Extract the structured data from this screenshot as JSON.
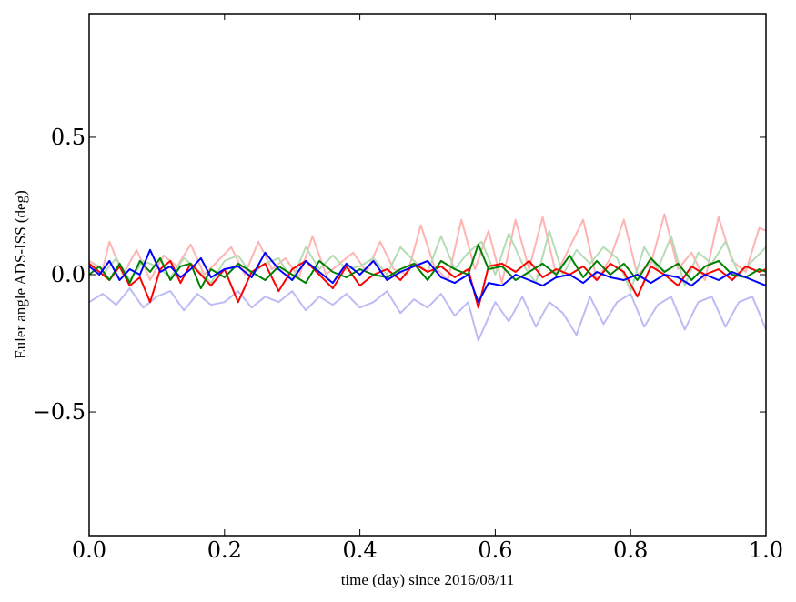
{
  "chart_data": {
    "type": "line",
    "xlabel": "time (day) since 2016/08/11",
    "ylabel": "Euler angle ADS-ISS (deg)",
    "xlim": [
      0.0,
      1.0
    ],
    "ylim": [
      -0.95,
      0.95
    ],
    "x_ticks": [
      {
        "value": 0.0,
        "label": "0.0"
      },
      {
        "value": 0.2,
        "label": "0.2"
      },
      {
        "value": 0.4,
        "label": "0.4"
      },
      {
        "value": 0.6,
        "label": "0.6"
      },
      {
        "value": 0.8,
        "label": "0.8"
      },
      {
        "value": 1.0,
        "label": "1.0"
      }
    ],
    "y_ticks": [
      {
        "value": 0.5,
        "label": "0.5"
      },
      {
        "value": 0.0,
        "label": "0.0"
      },
      {
        "value": -0.5,
        "label": "−0.5"
      }
    ],
    "grid": false,
    "series": [
      {
        "color": "#ffb3b3",
        "width": 2,
        "x": [
          0.0,
          0.02,
          0.03,
          0.05,
          0.07,
          0.09,
          0.11,
          0.13,
          0.15,
          0.17,
          0.19,
          0.21,
          0.23,
          0.25,
          0.27,
          0.29,
          0.31,
          0.33,
          0.35,
          0.37,
          0.39,
          0.41,
          0.43,
          0.45,
          0.47,
          0.49,
          0.51,
          0.53,
          0.55,
          0.57,
          0.59,
          0.61,
          0.63,
          0.65,
          0.67,
          0.69,
          0.71,
          0.73,
          0.75,
          0.77,
          0.79,
          0.81,
          0.83,
          0.85,
          0.87,
          0.89,
          0.91,
          0.93,
          0.95,
          0.97,
          0.99,
          1.0
        ],
        "y": [
          0.05,
          0.02,
          0.12,
          0.0,
          0.09,
          -0.02,
          0.07,
          0.03,
          0.11,
          0.0,
          0.05,
          0.1,
          0.0,
          0.12,
          0.02,
          0.06,
          -0.01,
          0.14,
          0.0,
          0.04,
          0.08,
          0.01,
          0.12,
          0.02,
          0.0,
          0.18,
          0.03,
          -0.02,
          0.2,
          0.02,
          0.16,
          -0.03,
          0.2,
          0.02,
          0.21,
          0.0,
          0.1,
          0.2,
          -0.02,
          0.06,
          0.2,
          0.0,
          0.04,
          0.22,
          0.02,
          0.08,
          -0.02,
          0.21,
          0.05,
          0.01,
          0.17,
          0.16
        ]
      },
      {
        "color": "#b5dcb5",
        "width": 2,
        "x": [
          0.0,
          0.02,
          0.04,
          0.06,
          0.08,
          0.1,
          0.12,
          0.14,
          0.16,
          0.18,
          0.2,
          0.22,
          0.24,
          0.26,
          0.28,
          0.3,
          0.32,
          0.34,
          0.36,
          0.38,
          0.4,
          0.42,
          0.44,
          0.46,
          0.48,
          0.5,
          0.52,
          0.54,
          0.56,
          0.58,
          0.6,
          0.62,
          0.64,
          0.66,
          0.68,
          0.7,
          0.72,
          0.74,
          0.76,
          0.78,
          0.8,
          0.82,
          0.84,
          0.86,
          0.88,
          0.9,
          0.92,
          0.94,
          0.96,
          0.98,
          1.0
        ],
        "y": [
          0.04,
          0.0,
          0.06,
          -0.02,
          0.05,
          0.03,
          -0.01,
          0.06,
          0.02,
          -0.03,
          0.05,
          0.07,
          0.0,
          0.04,
          0.06,
          -0.02,
          0.1,
          0.02,
          0.07,
          0.02,
          0.03,
          0.06,
          0.0,
          0.1,
          0.05,
          0.01,
          0.14,
          0.02,
          0.08,
          0.12,
          0.0,
          0.15,
          0.04,
          -0.03,
          0.16,
          0.0,
          0.09,
          0.04,
          0.1,
          0.06,
          -0.06,
          0.1,
          0.02,
          0.14,
          -0.04,
          0.08,
          0.04,
          0.12,
          0.0,
          0.05,
          0.1
        ]
      },
      {
        "color": "#bcbcf5",
        "width": 2,
        "x": [
          0.0,
          0.02,
          0.04,
          0.06,
          0.08,
          0.1,
          0.12,
          0.14,
          0.16,
          0.18,
          0.2,
          0.22,
          0.24,
          0.26,
          0.28,
          0.3,
          0.32,
          0.34,
          0.36,
          0.38,
          0.4,
          0.42,
          0.44,
          0.46,
          0.48,
          0.5,
          0.52,
          0.54,
          0.56,
          0.575,
          0.6,
          0.62,
          0.64,
          0.66,
          0.68,
          0.7,
          0.72,
          0.74,
          0.76,
          0.78,
          0.8,
          0.82,
          0.84,
          0.86,
          0.88,
          0.9,
          0.92,
          0.94,
          0.96,
          0.98,
          1.0
        ],
        "y": [
          -0.1,
          -0.07,
          -0.11,
          -0.05,
          -0.12,
          -0.08,
          -0.06,
          -0.13,
          -0.07,
          -0.11,
          -0.1,
          -0.06,
          -0.12,
          -0.08,
          -0.1,
          -0.06,
          -0.13,
          -0.08,
          -0.11,
          -0.07,
          -0.12,
          -0.1,
          -0.06,
          -0.14,
          -0.09,
          -0.12,
          -0.07,
          -0.15,
          -0.1,
          -0.24,
          -0.1,
          -0.17,
          -0.08,
          -0.19,
          -0.1,
          -0.14,
          -0.22,
          -0.08,
          -0.18,
          -0.1,
          -0.07,
          -0.19,
          -0.11,
          -0.08,
          -0.2,
          -0.1,
          -0.08,
          -0.19,
          -0.1,
          -0.08,
          -0.2
        ]
      },
      {
        "color": "#ff0000",
        "width": 2,
        "x": [
          0.0,
          0.015,
          0.03,
          0.045,
          0.06,
          0.075,
          0.09,
          0.105,
          0.12,
          0.135,
          0.15,
          0.165,
          0.18,
          0.2,
          0.22,
          0.24,
          0.26,
          0.28,
          0.3,
          0.32,
          0.34,
          0.36,
          0.38,
          0.4,
          0.42,
          0.44,
          0.46,
          0.48,
          0.5,
          0.52,
          0.54,
          0.56,
          0.575,
          0.59,
          0.61,
          0.63,
          0.65,
          0.67,
          0.69,
          0.71,
          0.73,
          0.75,
          0.77,
          0.79,
          0.81,
          0.83,
          0.85,
          0.87,
          0.89,
          0.91,
          0.93,
          0.95,
          0.97,
          0.99,
          1.0
        ],
        "y": [
          0.04,
          0.01,
          -0.02,
          0.03,
          -0.04,
          -0.01,
          -0.1,
          0.02,
          0.05,
          -0.03,
          0.04,
          0.0,
          -0.04,
          0.02,
          -0.1,
          0.01,
          0.04,
          -0.06,
          0.02,
          0.05,
          0.0,
          -0.05,
          0.03,
          -0.04,
          0.0,
          0.02,
          -0.02,
          0.04,
          0.01,
          0.03,
          -0.01,
          0.02,
          -0.12,
          0.03,
          0.04,
          0.01,
          0.05,
          -0.01,
          0.02,
          0.0,
          0.03,
          -0.02,
          0.04,
          0.01,
          -0.08,
          0.03,
          0.0,
          -0.04,
          0.03,
          0.0,
          0.02,
          -0.02,
          0.03,
          0.01,
          0.02
        ]
      },
      {
        "color": "#008000",
        "width": 2,
        "x": [
          0.0,
          0.015,
          0.03,
          0.045,
          0.06,
          0.075,
          0.09,
          0.105,
          0.12,
          0.135,
          0.15,
          0.165,
          0.18,
          0.2,
          0.22,
          0.24,
          0.26,
          0.28,
          0.3,
          0.32,
          0.34,
          0.36,
          0.38,
          0.4,
          0.42,
          0.44,
          0.46,
          0.48,
          0.5,
          0.52,
          0.54,
          0.56,
          0.575,
          0.59,
          0.61,
          0.63,
          0.65,
          0.67,
          0.69,
          0.71,
          0.73,
          0.75,
          0.77,
          0.79,
          0.81,
          0.83,
          0.85,
          0.87,
          0.89,
          0.91,
          0.93,
          0.95,
          0.97,
          0.99,
          1.0
        ],
        "y": [
          0.0,
          0.03,
          -0.02,
          0.04,
          -0.03,
          0.05,
          0.01,
          0.06,
          -0.02,
          0.03,
          0.04,
          -0.05,
          0.02,
          -0.01,
          0.04,
          0.01,
          -0.02,
          0.03,
          0.0,
          -0.03,
          0.05,
          0.01,
          -0.01,
          0.02,
          0.0,
          -0.01,
          0.02,
          0.04,
          -0.02,
          0.05,
          0.02,
          0.0,
          0.11,
          0.02,
          0.03,
          -0.02,
          0.01,
          0.04,
          0.0,
          0.07,
          -0.01,
          0.05,
          0.0,
          0.04,
          -0.02,
          0.06,
          0.01,
          0.04,
          -0.02,
          0.03,
          0.05,
          0.0,
          -0.01,
          0.02,
          0.01
        ]
      },
      {
        "color": "#0000ff",
        "width": 2,
        "x": [
          0.0,
          0.015,
          0.03,
          0.045,
          0.06,
          0.075,
          0.09,
          0.105,
          0.12,
          0.135,
          0.15,
          0.165,
          0.18,
          0.2,
          0.22,
          0.24,
          0.26,
          0.28,
          0.3,
          0.32,
          0.34,
          0.36,
          0.38,
          0.4,
          0.42,
          0.44,
          0.46,
          0.48,
          0.5,
          0.52,
          0.54,
          0.56,
          0.575,
          0.59,
          0.61,
          0.63,
          0.65,
          0.67,
          0.69,
          0.71,
          0.73,
          0.75,
          0.77,
          0.79,
          0.81,
          0.83,
          0.85,
          0.87,
          0.89,
          0.91,
          0.93,
          0.95,
          0.97,
          0.99,
          1.0
        ],
        "y": [
          0.03,
          0.0,
          0.05,
          -0.02,
          0.02,
          0.0,
          0.09,
          0.01,
          0.03,
          -0.01,
          0.02,
          0.06,
          -0.01,
          0.02,
          0.03,
          -0.01,
          0.08,
          0.02,
          -0.02,
          0.05,
          0.01,
          -0.03,
          0.04,
          0.0,
          0.05,
          -0.02,
          0.01,
          0.03,
          0.05,
          -0.01,
          -0.03,
          0.0,
          -0.1,
          -0.03,
          -0.04,
          0.0,
          -0.02,
          -0.04,
          -0.01,
          0.0,
          -0.03,
          0.01,
          -0.01,
          -0.02,
          0.0,
          -0.03,
          0.0,
          -0.01,
          -0.04,
          0.0,
          -0.02,
          0.01,
          -0.01,
          -0.03,
          -0.04
        ]
      }
    ]
  }
}
